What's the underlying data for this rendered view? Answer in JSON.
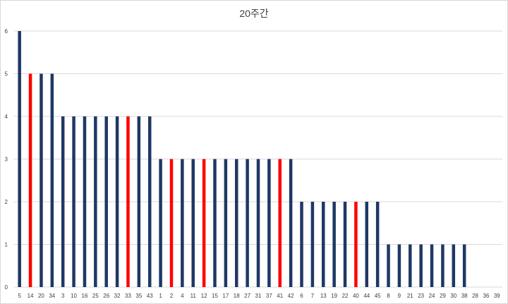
{
  "chart_data": {
    "type": "bar",
    "title": "20주간",
    "xlabel": "",
    "ylabel": "",
    "ylim": [
      0,
      6
    ],
    "yticks": [
      0,
      1,
      2,
      3,
      4,
      5,
      6
    ],
    "grid": true,
    "legend": "none",
    "categories": [
      "5",
      "14",
      "20",
      "34",
      "3",
      "10",
      "16",
      "25",
      "26",
      "32",
      "33",
      "35",
      "43",
      "1",
      "2",
      "4",
      "11",
      "12",
      "15",
      "17",
      "18",
      "27",
      "31",
      "37",
      "41",
      "42",
      "6",
      "7",
      "13",
      "19",
      "22",
      "40",
      "44",
      "45",
      "8",
      "9",
      "21",
      "23",
      "24",
      "29",
      "30",
      "38",
      "28",
      "36",
      "39"
    ],
    "values": [
      6,
      5,
      5,
      5,
      4,
      4,
      4,
      4,
      4,
      4,
      4,
      4,
      4,
      3,
      3,
      3,
      3,
      3,
      3,
      3,
      3,
      3,
      3,
      3,
      3,
      3,
      2,
      2,
      2,
      2,
      2,
      2,
      2,
      2,
      1,
      1,
      1,
      1,
      1,
      1,
      1,
      1,
      0,
      0,
      0
    ],
    "highlighted": [
      "14",
      "33",
      "2",
      "12",
      "41",
      "40"
    ],
    "colors": {
      "default": "#1f3864",
      "highlight": "#ff0000",
      "grid": "#d9d9d9"
    }
  }
}
